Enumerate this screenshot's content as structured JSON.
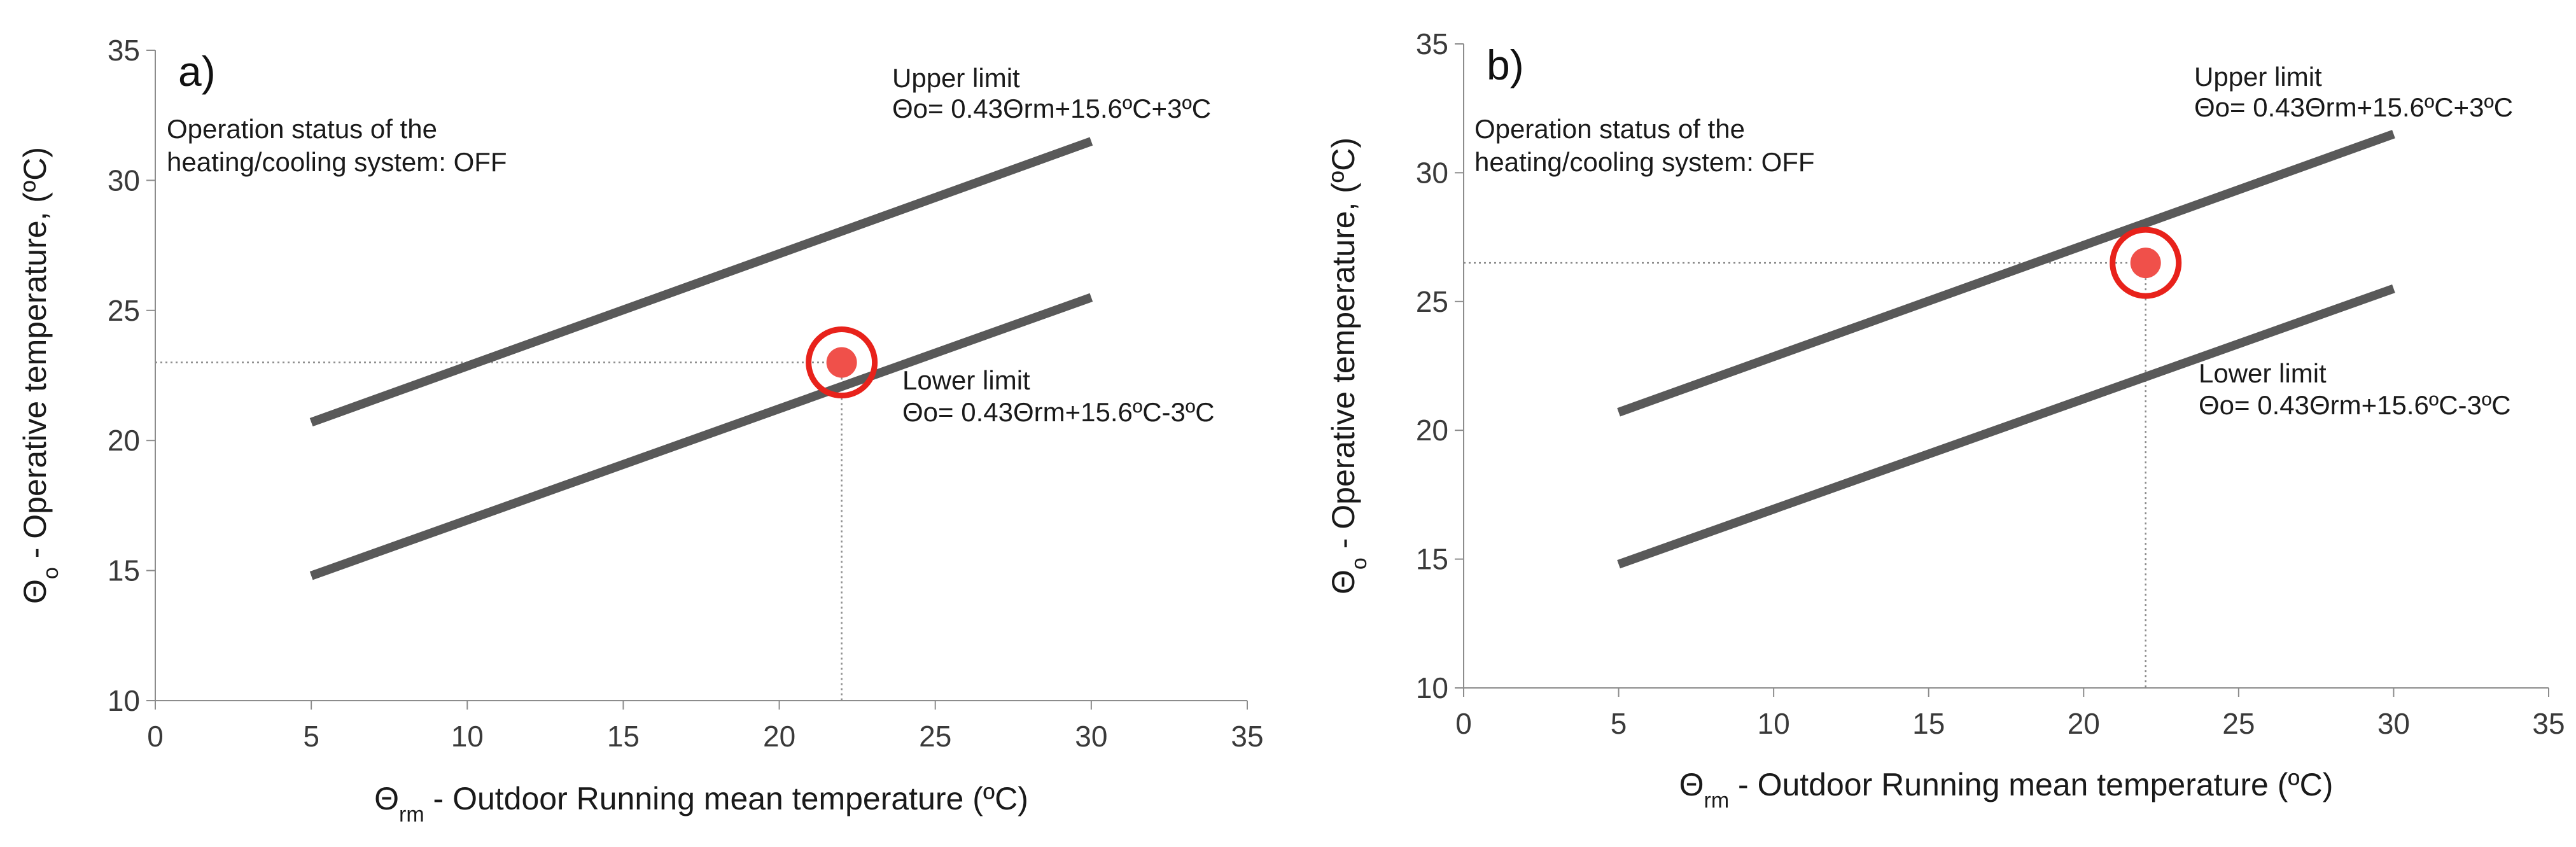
{
  "colors": {
    "line": "#595959",
    "axis": "#8c8c8c",
    "guide": "#8c8c8c",
    "point_fill": "#f0504a",
    "ring": "#e8221b"
  },
  "chart_data": [
    {
      "type": "line",
      "panel_label": "a)",
      "xlabel_symbol": "Θ",
      "xlabel_subscript": "rm",
      "xlabel_rest": " - Outdoor Running mean temperature (ºC)",
      "ylabel_symbol": "Θ",
      "ylabel_subscript": "o",
      "ylabel_rest": " - Operative temperature, (ºC)",
      "xlim": [
        0,
        35
      ],
      "ylim": [
        10,
        35
      ],
      "xticks": [
        0,
        5,
        10,
        15,
        20,
        25,
        30,
        35
      ],
      "yticks": [
        10,
        15,
        20,
        25,
        30,
        35
      ],
      "series": [
        {
          "name": "Upper limit",
          "x": [
            5,
            30
          ],
          "y": [
            20.7,
            31.5
          ]
        },
        {
          "name": "Lower limit",
          "x": [
            5,
            30
          ],
          "y": [
            14.8,
            25.5
          ]
        }
      ],
      "point": {
        "x": 22,
        "y": 23
      },
      "annotations": {
        "status_line1": "Operation status of the",
        "status_line2": "heating/cooling system: OFF",
        "upper_title": "Upper limit",
        "upper_formula": "Θo= 0.43Θrm+15.6ºC+3ºC",
        "lower_title": "Lower limit",
        "lower_formula": "Θo= 0.43Θrm+15.6ºC-3ºC"
      }
    },
    {
      "type": "line",
      "panel_label": "b)",
      "xlabel_symbol": "Θ",
      "xlabel_subscript": "rm",
      "xlabel_rest": " - Outdoor Running mean temperature (ºC)",
      "ylabel_symbol": "Θ",
      "ylabel_subscript": "o",
      "ylabel_rest": " - Operative temperature, (ºC)",
      "xlim": [
        0,
        35
      ],
      "ylim": [
        10,
        35
      ],
      "xticks": [
        0,
        5,
        10,
        15,
        20,
        25,
        30,
        35
      ],
      "yticks": [
        10,
        15,
        20,
        25,
        30,
        35
      ],
      "series": [
        {
          "name": "Upper limit",
          "x": [
            5,
            30
          ],
          "y": [
            20.7,
            31.5
          ]
        },
        {
          "name": "Lower limit",
          "x": [
            5,
            30
          ],
          "y": [
            14.8,
            25.5
          ]
        }
      ],
      "point": {
        "x": 22,
        "y": 26.5
      },
      "annotations": {
        "status_line1": "Operation status of the",
        "status_line2": "heating/cooling system: OFF",
        "upper_title": "Upper limit",
        "upper_formula": "Θo= 0.43Θrm+15.6ºC+3ºC",
        "lower_title": "Lower limit",
        "lower_formula": "Θo= 0.43Θrm+15.6ºC-3ºC"
      }
    }
  ]
}
